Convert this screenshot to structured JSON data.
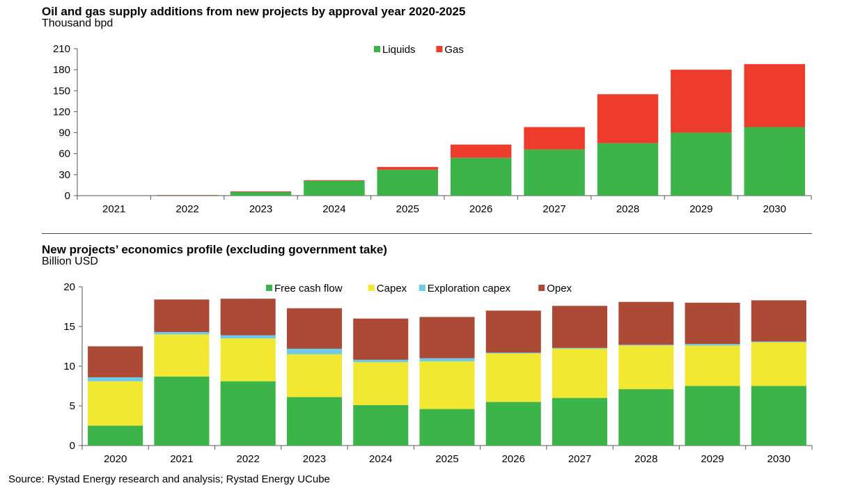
{
  "chart_data": [
    {
      "type": "bar",
      "stacked": true,
      "title": "Oil and gas supply additions from new projects by approval year 2020-2025",
      "ylabel": "Thousand bpd",
      "xlabel": "",
      "ylim": [
        0,
        210
      ],
      "yticks": [
        0,
        30,
        60,
        90,
        120,
        150,
        180,
        210
      ],
      "grid": false,
      "legend": "top-center",
      "categories": [
        "2021",
        "2022",
        "2023",
        "2024",
        "2025",
        "2026",
        "2027",
        "2028",
        "2029",
        "2030"
      ],
      "series": [
        {
          "name": "Liquids",
          "color": "#3cb44a",
          "values": [
            0,
            0.5,
            5,
            21,
            37,
            54,
            66,
            75,
            90,
            98
          ]
        },
        {
          "name": "Gas",
          "color": "#ee3c2c",
          "values": [
            0,
            0.5,
            1,
            1,
            4,
            19,
            32,
            70,
            90,
            90
          ]
        }
      ]
    },
    {
      "type": "bar",
      "stacked": true,
      "title": "New projects’ economics profile (excluding government take)",
      "ylabel": "Billion USD",
      "xlabel": "",
      "ylim": [
        0,
        20
      ],
      "yticks": [
        0,
        5,
        10,
        15,
        20
      ],
      "grid": false,
      "legend": "top-center",
      "categories": [
        "2020",
        "2021",
        "2022",
        "2023",
        "2024",
        "2025",
        "2026",
        "2027",
        "2028",
        "2029",
        "2030"
      ],
      "series": [
        {
          "name": "Free cash flow",
          "color": "#3cb44a",
          "values": [
            2.5,
            8.7,
            8.1,
            6.1,
            5.1,
            4.6,
            5.5,
            6.0,
            7.1,
            7.5,
            7.5
          ]
        },
        {
          "name": "Capex",
          "color": "#f2e831",
          "values": [
            5.6,
            5.3,
            5.4,
            5.4,
            5.4,
            6.0,
            6.1,
            6.2,
            5.5,
            5.1,
            5.5
          ]
        },
        {
          "name": "Exploration capex",
          "color": "#6dcbe8",
          "values": [
            0.5,
            0.3,
            0.4,
            0.7,
            0.3,
            0.4,
            0.1,
            0.1,
            0.1,
            0.2,
            0.1
          ]
        },
        {
          "name": "Opex",
          "color": "#ad4a36",
          "values": [
            3.9,
            4.1,
            4.6,
            5.1,
            5.2,
            5.2,
            5.3,
            5.3,
            5.4,
            5.2,
            5.2
          ]
        }
      ]
    }
  ],
  "source": "Source: Rystad Energy research and analysis; Rystad Energy UCube"
}
